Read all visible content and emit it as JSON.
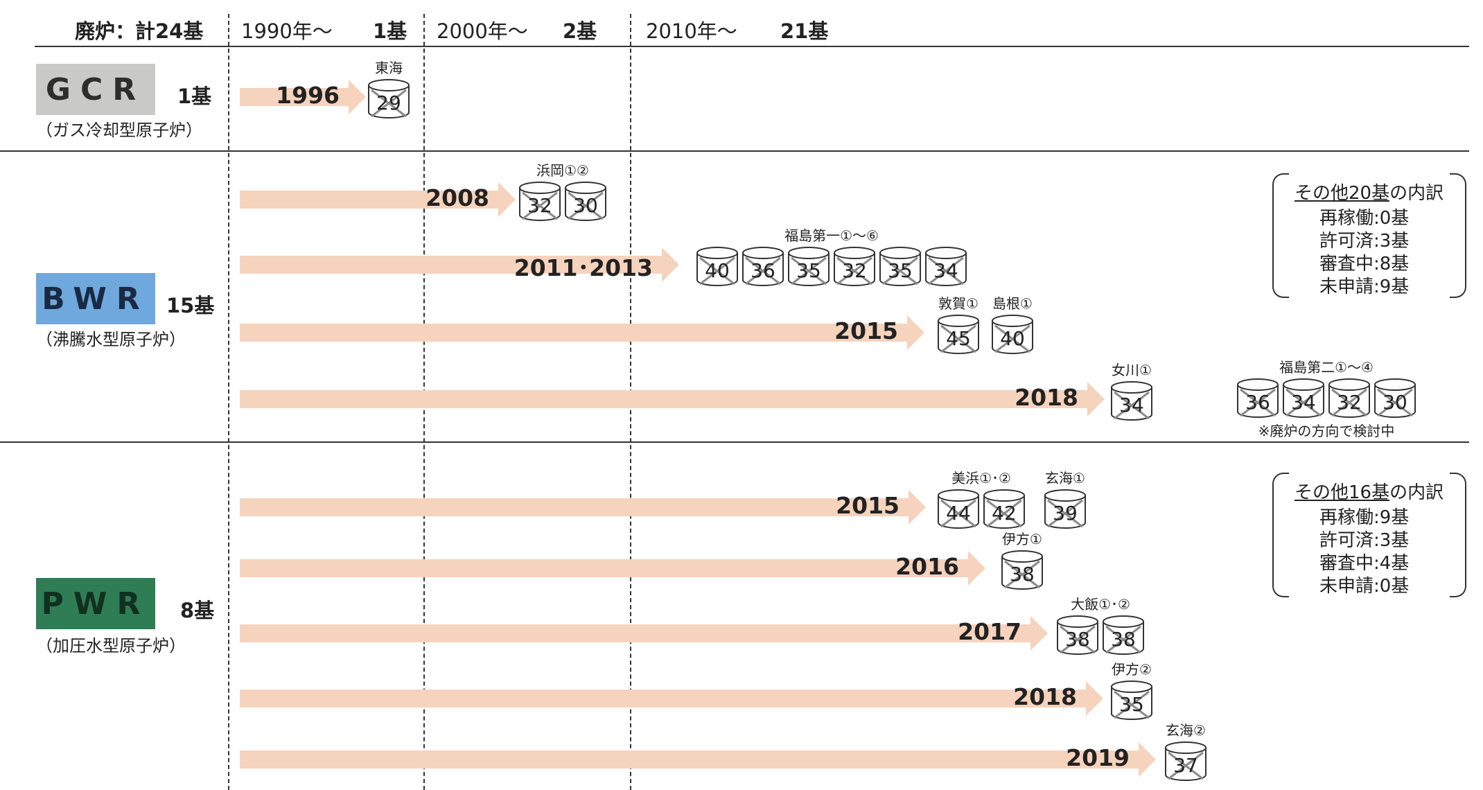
{
  "header": {
    "total": "廃炉：計24基",
    "eras": [
      {
        "label": "1990年～",
        "count": "1基"
      },
      {
        "label": "2000年～",
        "count": "2基"
      },
      {
        "label": "2010年～",
        "count": "21基"
      }
    ]
  },
  "types": [
    {
      "code": "GCR",
      "count": "1基",
      "subtitle": "（ガス冷却型原子炉）",
      "color": "#c9cac8"
    },
    {
      "code": "BWR",
      "count": "15基",
      "subtitle": "（沸騰水型原子炉）",
      "color": "#6fa8dc"
    },
    {
      "code": "PWR",
      "count": "8基",
      "subtitle": "（加圧水型原子炉）",
      "color": "#2e7d55"
    }
  ],
  "timeline": {
    "gcr": [
      {
        "year": "1996",
        "plants": [
          {
            "name": "東海",
            "ages": [
              "29"
            ]
          }
        ]
      }
    ],
    "bwr": [
      {
        "year": "2008",
        "plants": [
          {
            "name": "浜岡①②",
            "ages": [
              "32",
              "30"
            ]
          }
        ]
      },
      {
        "year": "2011･2013",
        "plants": [
          {
            "name": "福島第一①～⑥",
            "ages": [
              "40",
              "36",
              "35",
              "32",
              "35",
              "34"
            ]
          }
        ]
      },
      {
        "year": "2015",
        "plants": [
          {
            "name": "敦賀①",
            "ages": [
              "45"
            ]
          },
          {
            "name": "島根①",
            "ages": [
              "40"
            ]
          }
        ]
      },
      {
        "year": "2018",
        "plants": [
          {
            "name": "女川①",
            "ages": [
              "34"
            ]
          }
        ]
      }
    ],
    "bwr_review": {
      "name": "福島第二①～④",
      "ages": [
        "36",
        "34",
        "32",
        "30"
      ],
      "note": "※廃炉の方向で検討中"
    },
    "pwr": [
      {
        "year": "2015",
        "plants": [
          {
            "name": "美浜①･②",
            "ages": [
              "44",
              "42"
            ]
          },
          {
            "name": "玄海①",
            "ages": [
              "39"
            ]
          }
        ]
      },
      {
        "year": "2016",
        "plants": [
          {
            "name": "伊方①",
            "ages": [
              "38"
            ]
          }
        ]
      },
      {
        "year": "2017",
        "plants": [
          {
            "name": "大飯①･②",
            "ages": [
              "38",
              "38"
            ]
          }
        ]
      },
      {
        "year": "2018",
        "plants": [
          {
            "name": "伊方②",
            "ages": [
              "35"
            ]
          }
        ]
      },
      {
        "year": "2019",
        "plants": [
          {
            "name": "玄海②",
            "ages": [
              "37"
            ]
          }
        ]
      }
    ]
  },
  "breakdowns": {
    "bwr": {
      "title_prefix": "その他20基",
      "title_suffix": "の内訳",
      "lines": [
        "再稼働:0基",
        "許可済:3基",
        "審査中:8基",
        "未申請:9基"
      ]
    },
    "pwr": {
      "title_prefix": "その他16基",
      "title_suffix": "の内訳",
      "lines": [
        "再稼働:9基",
        "許可済:3基",
        "審査中:4基",
        "未申請:0基"
      ]
    }
  },
  "colors": {
    "arrow": "#f6d3bd",
    "cross": "#8a8a8a"
  }
}
